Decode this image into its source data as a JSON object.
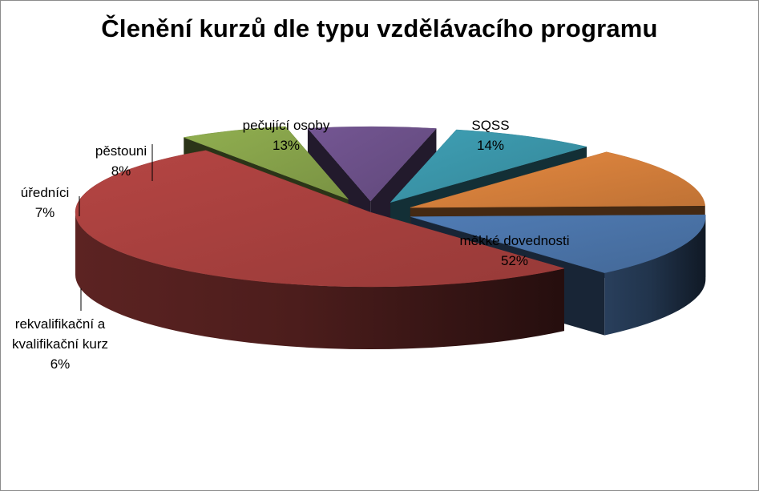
{
  "chart_data": {
    "type": "pie",
    "style": "3d-exploded",
    "title": "Členění kurzů dle typu vzdělávacího programu",
    "slices": [
      {
        "label": "SQSS",
        "percent_label": "14%",
        "value": 14,
        "color": "#4a73a8"
      },
      {
        "label": "měkké dovednosti",
        "percent_label": "52%",
        "value": 52,
        "color": "#a8403e"
      },
      {
        "label": "rekvalifikační a kvalifikační kurz",
        "label_lines": [
          "rekvalifikační a",
          "kvalifikační kurz"
        ],
        "percent_label": "6%",
        "value": 6,
        "color": "#86a24a"
      },
      {
        "label": "úředníci",
        "percent_label": "7%",
        "value": 7,
        "color": "#6b5088"
      },
      {
        "label": "pěstouni",
        "percent_label": "8%",
        "value": 8,
        "color": "#3a94a8"
      },
      {
        "label": "pečující osoby",
        "percent_label": "13%",
        "value": 13,
        "color": "#d47f3b"
      }
    ],
    "legend": "none",
    "data_labels": "outside with leader lines"
  }
}
